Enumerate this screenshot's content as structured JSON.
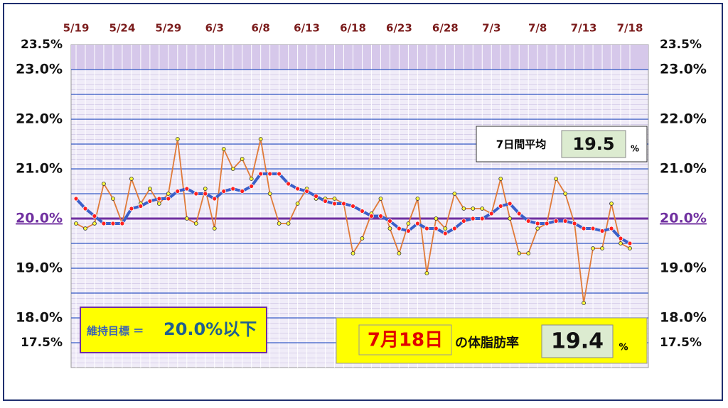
{
  "chart_data": {
    "type": "line",
    "categories": [
      "5/19",
      null,
      null,
      null,
      null,
      "5/24",
      null,
      null,
      null,
      null,
      "5/29",
      null,
      null,
      null,
      null,
      "6/3",
      null,
      null,
      null,
      null,
      "6/8",
      null,
      null,
      null,
      null,
      "6/13",
      null,
      null,
      null,
      null,
      "6/18",
      null,
      null,
      null,
      null,
      "6/23",
      null,
      null,
      null,
      null,
      "6/28",
      null,
      null,
      null,
      null,
      "7/3",
      null,
      null,
      null,
      null,
      "7/8",
      null,
      null,
      null,
      null,
      "7/13",
      null,
      null,
      null,
      null,
      "7/18"
    ],
    "series": [
      {
        "color": "#e07b39",
        "values": [
          19.9,
          19.8,
          19.9,
          20.7,
          20.4,
          19.9,
          20.8,
          20.3,
          20.6,
          20.3,
          20.5,
          21.6,
          20.0,
          19.9,
          20.6,
          19.8,
          21.4,
          21.0,
          21.2,
          20.8,
          21.6,
          20.5,
          19.9,
          19.9,
          20.3,
          20.6,
          20.4,
          20.4,
          20.4,
          20.3,
          19.3,
          19.6,
          20.1,
          20.4,
          19.8,
          19.3,
          19.9,
          20.4,
          18.9,
          20.0,
          19.8,
          20.5,
          20.2,
          20.2,
          20.2,
          20.1,
          20.8,
          20.0,
          19.3,
          19.3,
          19.8,
          19.9,
          20.8,
          20.5,
          19.9,
          18.3,
          19.4,
          19.4,
          20.3,
          19.5,
          19.4
        ]
      },
      {
        "color": "#3a5fc8",
        "values": [
          20.4,
          20.2,
          20.05,
          19.9,
          19.9,
          19.9,
          20.2,
          20.25,
          20.35,
          20.4,
          20.4,
          20.55,
          20.6,
          20.5,
          20.5,
          20.4,
          20.55,
          20.6,
          20.55,
          20.65,
          20.9,
          20.9,
          20.9,
          20.7,
          20.6,
          20.55,
          20.45,
          20.35,
          20.3,
          20.3,
          20.25,
          20.15,
          20.05,
          20.05,
          19.95,
          19.8,
          19.75,
          19.9,
          19.8,
          19.8,
          19.7,
          19.8,
          19.95,
          20.0,
          20.0,
          20.1,
          20.25,
          20.3,
          20.1,
          19.95,
          19.9,
          19.9,
          19.95,
          19.95,
          19.9,
          19.8,
          19.8,
          19.75,
          19.8,
          19.6,
          19.5
        ]
      }
    ],
    "ylim": [
      17.0,
      23.5
    ],
    "yticks": [
      {
        "value": 23.5,
        "label": "23.5%"
      },
      {
        "value": 23.0,
        "label": "23.0%"
      },
      {
        "value": 22.0,
        "label": "22.0%"
      },
      {
        "value": 21.0,
        "label": "21.0%"
      },
      {
        "value": 20.0,
        "label": "20.0%"
      },
      {
        "value": 19.0,
        "label": "19.0%"
      },
      {
        "value": 18.0,
        "label": "18.0%"
      },
      {
        "value": 17.5,
        "label": "17.5%"
      }
    ],
    "grid_values": [
      23.0,
      22.5,
      22.0,
      21.5,
      21.0,
      20.5,
      19.5,
      19.0,
      18.5,
      18.0,
      17.5
    ],
    "target": 20.0,
    "avg_box": {
      "label": "7日間平均",
      "value": 19.5,
      "unit": "%"
    },
    "goal_box": {
      "label": "維持目標 ＝",
      "value": "20.0%以下"
    },
    "today_box": {
      "date": "7月18日",
      "label": "の体脂肪率",
      "value": 19.4,
      "unit": "%"
    }
  }
}
